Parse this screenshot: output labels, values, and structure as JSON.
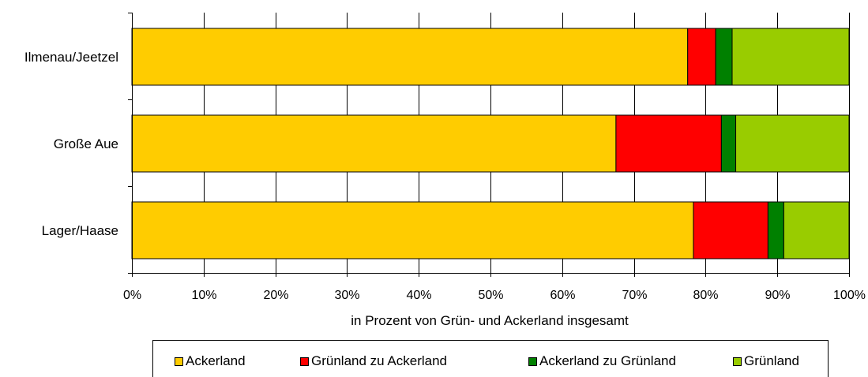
{
  "chart_data": {
    "type": "bar",
    "orientation": "horizontal",
    "stacked": "percent",
    "categories": [
      "Ilmenau/Jeetzel",
      "Große Aue",
      "Lager/Haase"
    ],
    "series": [
      {
        "name": "Ackerland",
        "color": "#FFCC00",
        "values": [
          77.5,
          67.5,
          78.3
        ]
      },
      {
        "name": "Grünland zu Ackerland",
        "color": "#FF0000",
        "values": [
          3.9,
          14.7,
          10.4
        ]
      },
      {
        "name": "Ackerland zu Grünland",
        "color": "#008000",
        "values": [
          2.3,
          2.0,
          2.2
        ]
      },
      {
        "name": "Grünland",
        "color": "#99CC00",
        "values": [
          16.3,
          15.8,
          9.1
        ]
      }
    ],
    "xlabel": "in Prozent von Grün- und Ackerland insgesamt",
    "ylabel": "",
    "xlim": [
      0,
      100
    ],
    "xticks": [
      "0%",
      "10%",
      "20%",
      "30%",
      "40%",
      "50%",
      "60%",
      "70%",
      "80%",
      "90%",
      "100%"
    ],
    "grid": "vertical",
    "legend_position": "bottom"
  }
}
